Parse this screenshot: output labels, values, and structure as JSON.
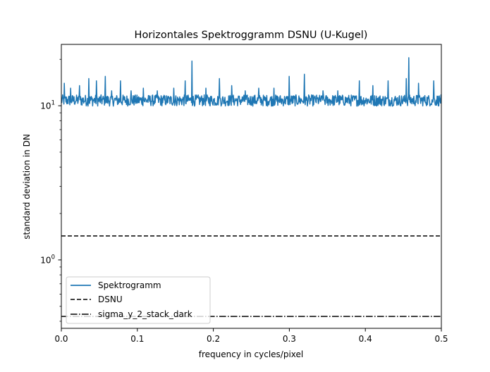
{
  "chart_data": {
    "type": "line",
    "title": "Horizontales Spektroggramm DSNU (U-Kugel)",
    "xlabel": "frequency in cycles/pixel",
    "ylabel": "standard deviation in DN",
    "xlim": [
      0,
      0.5
    ],
    "ylim": [
      0.36,
      25
    ],
    "yscale": "log",
    "grid": false,
    "legend_position": "lower-left",
    "x_ticks": [
      0,
      0.1,
      0.2,
      0.3,
      0.4,
      0.5
    ],
    "x_tick_labels": [
      "0.0",
      "0.1",
      "0.2",
      "0.3",
      "0.4",
      "0.5"
    ],
    "y_major_ticks": [
      1,
      10
    ],
    "y_tick_labels": [
      {
        "base": "10",
        "exp": "0"
      },
      {
        "base": "10",
        "exp": "1"
      }
    ],
    "series": [
      {
        "name": "Spektrogramm",
        "color": "#1f77b4",
        "style": "solid",
        "baseline": 10.8,
        "x_range": [
          0,
          0.5
        ],
        "peaks": [
          {
            "x": 0.004,
            "y": 14.0
          },
          {
            "x": 0.012,
            "y": 13.0
          },
          {
            "x": 0.024,
            "y": 13.5
          },
          {
            "x": 0.036,
            "y": 15.0
          },
          {
            "x": 0.046,
            "y": 14.5
          },
          {
            "x": 0.058,
            "y": 15.5
          },
          {
            "x": 0.066,
            "y": 12.5
          },
          {
            "x": 0.078,
            "y": 14.5
          },
          {
            "x": 0.092,
            "y": 12.5
          },
          {
            "x": 0.108,
            "y": 13.0
          },
          {
            "x": 0.126,
            "y": 12.5
          },
          {
            "x": 0.148,
            "y": 13.0
          },
          {
            "x": 0.163,
            "y": 14.5
          },
          {
            "x": 0.172,
            "y": 19.5
          },
          {
            "x": 0.19,
            "y": 13.0
          },
          {
            "x": 0.208,
            "y": 15.0
          },
          {
            "x": 0.224,
            "y": 13.5
          },
          {
            "x": 0.242,
            "y": 12.5
          },
          {
            "x": 0.26,
            "y": 13.0
          },
          {
            "x": 0.28,
            "y": 13.0
          },
          {
            "x": 0.3,
            "y": 15.5
          },
          {
            "x": 0.32,
            "y": 16.0
          },
          {
            "x": 0.344,
            "y": 12.5
          },
          {
            "x": 0.364,
            "y": 12.5
          },
          {
            "x": 0.392,
            "y": 14.5
          },
          {
            "x": 0.41,
            "y": 13.5
          },
          {
            "x": 0.43,
            "y": 14.5
          },
          {
            "x": 0.454,
            "y": 15.0
          },
          {
            "x": 0.457,
            "y": 20.5
          },
          {
            "x": 0.47,
            "y": 14.0
          },
          {
            "x": 0.49,
            "y": 14.5
          }
        ]
      },
      {
        "name": "DSNU",
        "color": "#000000",
        "style": "dashed",
        "value": 1.43
      },
      {
        "name": "sigma_y_2_stack_dark",
        "color": "#000000",
        "style": "dashdot",
        "value": 0.43
      }
    ]
  }
}
